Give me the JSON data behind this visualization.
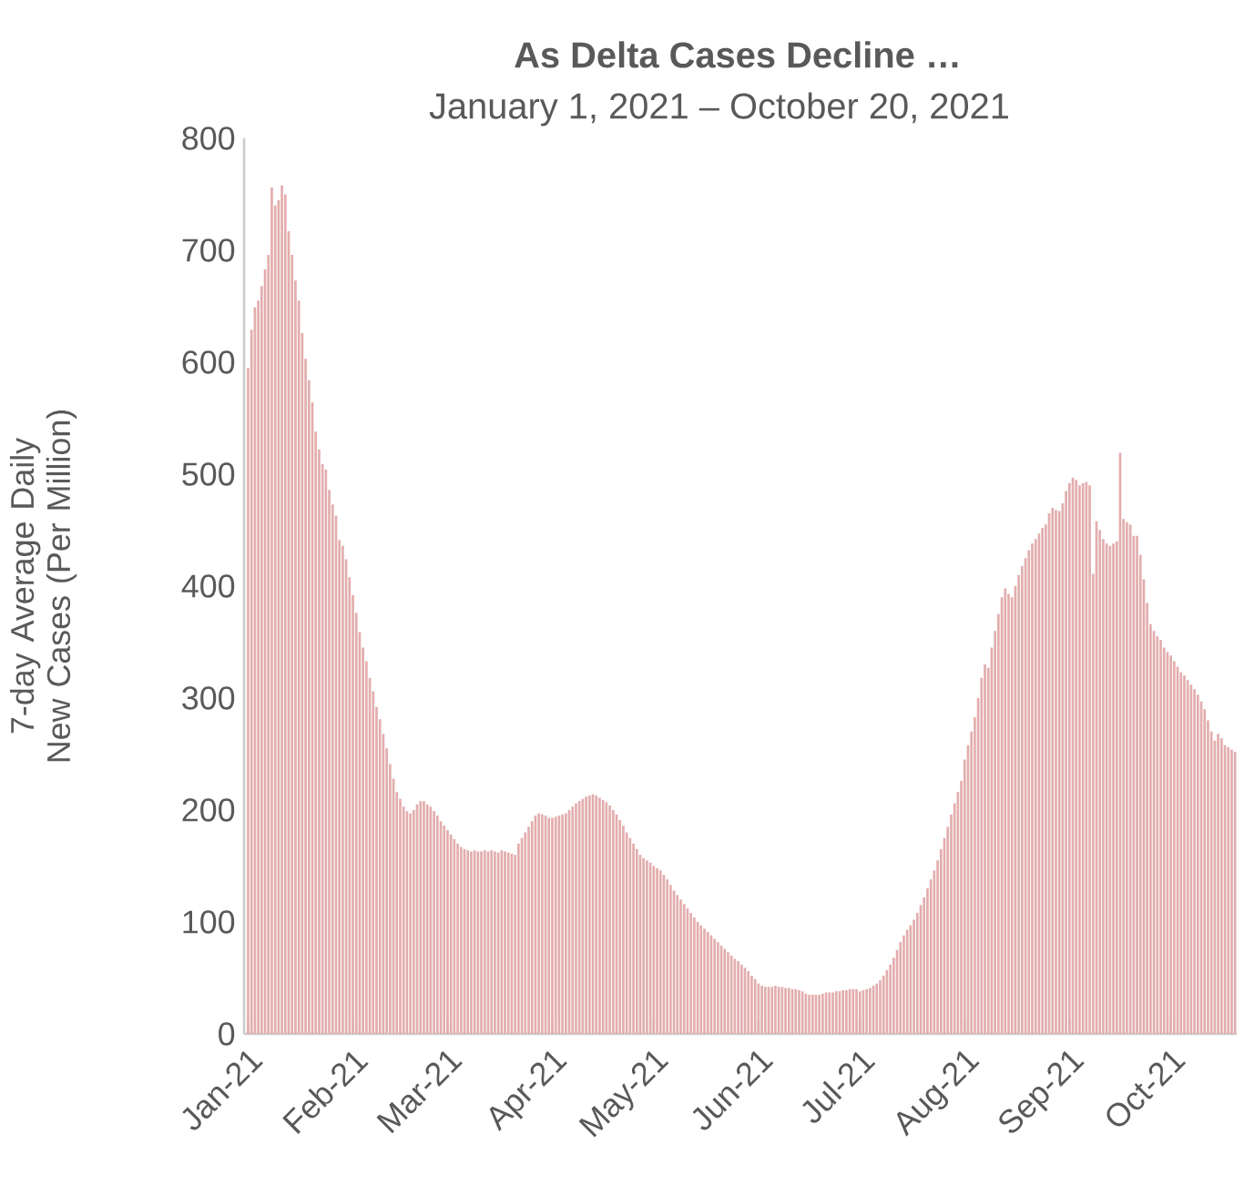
{
  "chart_data": {
    "type": "bar",
    "title": "As Delta Cases Decline …",
    "subtitle": "January 1, 2021 – October 20, 2021",
    "ylabel": "7-day Average Daily New Cases (Per Million)",
    "color": "#e3adad",
    "ylim": [
      0,
      800
    ],
    "yticks": [
      0,
      100,
      200,
      300,
      400,
      500,
      600,
      700,
      800
    ],
    "xlim": [
      "2021-01-01",
      "2021-10-20"
    ],
    "xticks": [
      {
        "value": "2021-01-01",
        "label": "Jan-21"
      },
      {
        "value": "2021-02-01",
        "label": "Feb-21"
      },
      {
        "value": "2021-03-01",
        "label": "Mar-21"
      },
      {
        "value": "2021-04-01",
        "label": "Apr-21"
      },
      {
        "value": "2021-05-01",
        "label": "May-21"
      },
      {
        "value": "2021-06-01",
        "label": "Jun-21"
      },
      {
        "value": "2021-07-01",
        "label": "Jul-21"
      },
      {
        "value": "2021-08-01",
        "label": "Aug-21"
      },
      {
        "value": "2021-09-01",
        "label": "Sep-21"
      },
      {
        "value": "2021-10-01",
        "label": "Oct-21"
      }
    ],
    "x": [
      "2021-01-01",
      "2021-01-02",
      "2021-01-03",
      "2021-01-04",
      "2021-01-05",
      "2021-01-06",
      "2021-01-07",
      "2021-01-08",
      "2021-01-09",
      "2021-01-10",
      "2021-01-11",
      "2021-01-12",
      "2021-01-13",
      "2021-01-14",
      "2021-01-15",
      "2021-01-16",
      "2021-01-17",
      "2021-01-18",
      "2021-01-19",
      "2021-01-20",
      "2021-01-21",
      "2021-01-22",
      "2021-01-23",
      "2021-01-24",
      "2021-01-25",
      "2021-01-26",
      "2021-01-27",
      "2021-01-28",
      "2021-01-29",
      "2021-01-30",
      "2021-01-31",
      "2021-02-01",
      "2021-02-02",
      "2021-02-03",
      "2021-02-04",
      "2021-02-05",
      "2021-02-06",
      "2021-02-07",
      "2021-02-08",
      "2021-02-09",
      "2021-02-10",
      "2021-02-11",
      "2021-02-12",
      "2021-02-13",
      "2021-02-14",
      "2021-02-15",
      "2021-02-16",
      "2021-02-17",
      "2021-02-18",
      "2021-02-19",
      "2021-02-20",
      "2021-02-21",
      "2021-02-22",
      "2021-02-23",
      "2021-02-24",
      "2021-02-25",
      "2021-02-26",
      "2021-02-27",
      "2021-02-28",
      "2021-03-01",
      "2021-03-02",
      "2021-03-03",
      "2021-03-04",
      "2021-03-05",
      "2021-03-06",
      "2021-03-07",
      "2021-03-08",
      "2021-03-09",
      "2021-03-10",
      "2021-03-11",
      "2021-03-12",
      "2021-03-13",
      "2021-03-14",
      "2021-03-15",
      "2021-03-16",
      "2021-03-17",
      "2021-03-18",
      "2021-03-19",
      "2021-03-20",
      "2021-03-21",
      "2021-03-22",
      "2021-03-23",
      "2021-03-24",
      "2021-03-25",
      "2021-03-26",
      "2021-03-27",
      "2021-03-28",
      "2021-03-29",
      "2021-03-30",
      "2021-03-31",
      "2021-04-01",
      "2021-04-02",
      "2021-04-03",
      "2021-04-04",
      "2021-04-05",
      "2021-04-06",
      "2021-04-07",
      "2021-04-08",
      "2021-04-09",
      "2021-04-10",
      "2021-04-11",
      "2021-04-12",
      "2021-04-13",
      "2021-04-14",
      "2021-04-15",
      "2021-04-16",
      "2021-04-17",
      "2021-04-18",
      "2021-04-19",
      "2021-04-20",
      "2021-04-21",
      "2021-04-22",
      "2021-04-23",
      "2021-04-24",
      "2021-04-25",
      "2021-04-26",
      "2021-04-27",
      "2021-04-28",
      "2021-04-29",
      "2021-04-30",
      "2021-05-01",
      "2021-05-02",
      "2021-05-03",
      "2021-05-04",
      "2021-05-05",
      "2021-05-06",
      "2021-05-07",
      "2021-05-08",
      "2021-05-09",
      "2021-05-10",
      "2021-05-11",
      "2021-05-12",
      "2021-05-13",
      "2021-05-14",
      "2021-05-15",
      "2021-05-16",
      "2021-05-17",
      "2021-05-18",
      "2021-05-19",
      "2021-05-20",
      "2021-05-21",
      "2021-05-22",
      "2021-05-23",
      "2021-05-24",
      "2021-05-25",
      "2021-05-26",
      "2021-05-27",
      "2021-05-28",
      "2021-05-29",
      "2021-05-30",
      "2021-05-31",
      "2021-06-01",
      "2021-06-02",
      "2021-06-03",
      "2021-06-04",
      "2021-06-05",
      "2021-06-06",
      "2021-06-07",
      "2021-06-08",
      "2021-06-09",
      "2021-06-10",
      "2021-06-11",
      "2021-06-12",
      "2021-06-13",
      "2021-06-14",
      "2021-06-15",
      "2021-06-16",
      "2021-06-17",
      "2021-06-18",
      "2021-06-19",
      "2021-06-20",
      "2021-06-21",
      "2021-06-22",
      "2021-06-23",
      "2021-06-24",
      "2021-06-25",
      "2021-06-26",
      "2021-06-27",
      "2021-06-28",
      "2021-06-29",
      "2021-06-30",
      "2021-07-01",
      "2021-07-02",
      "2021-07-03",
      "2021-07-04",
      "2021-07-05",
      "2021-07-06",
      "2021-07-07",
      "2021-07-08",
      "2021-07-09",
      "2021-07-10",
      "2021-07-11",
      "2021-07-12",
      "2021-07-13",
      "2021-07-14",
      "2021-07-15",
      "2021-07-16",
      "2021-07-17",
      "2021-07-18",
      "2021-07-19",
      "2021-07-20",
      "2021-07-21",
      "2021-07-22",
      "2021-07-23",
      "2021-07-24",
      "2021-07-25",
      "2021-07-26",
      "2021-07-27",
      "2021-07-28",
      "2021-07-29",
      "2021-07-30",
      "2021-07-31",
      "2021-08-01",
      "2021-08-02",
      "2021-08-03",
      "2021-08-04",
      "2021-08-05",
      "2021-08-06",
      "2021-08-07",
      "2021-08-08",
      "2021-08-09",
      "2021-08-10",
      "2021-08-11",
      "2021-08-12",
      "2021-08-13",
      "2021-08-14",
      "2021-08-15",
      "2021-08-16",
      "2021-08-17",
      "2021-08-18",
      "2021-08-19",
      "2021-08-20",
      "2021-08-21",
      "2021-08-22",
      "2021-08-23",
      "2021-08-24",
      "2021-08-25",
      "2021-08-26",
      "2021-08-27",
      "2021-08-28",
      "2021-08-29",
      "2021-08-30",
      "2021-08-31",
      "2021-09-01",
      "2021-09-02",
      "2021-09-03",
      "2021-09-04",
      "2021-09-05",
      "2021-09-06",
      "2021-09-07",
      "2021-09-08",
      "2021-09-09",
      "2021-09-10",
      "2021-09-11",
      "2021-09-12",
      "2021-09-13",
      "2021-09-14",
      "2021-09-15",
      "2021-09-16",
      "2021-09-17",
      "2021-09-18",
      "2021-09-19",
      "2021-09-20",
      "2021-09-21",
      "2021-09-22",
      "2021-09-23",
      "2021-09-24",
      "2021-09-25",
      "2021-09-26",
      "2021-09-27",
      "2021-09-28",
      "2021-09-29",
      "2021-09-30",
      "2021-10-01",
      "2021-10-02",
      "2021-10-03",
      "2021-10-04",
      "2021-10-05",
      "2021-10-06",
      "2021-10-07",
      "2021-10-08",
      "2021-10-09",
      "2021-10-10",
      "2021-10-11",
      "2021-10-12",
      "2021-10-13",
      "2021-10-14",
      "2021-10-15",
      "2021-10-16",
      "2021-10-17",
      "2021-10-18",
      "2021-10-19",
      "2021-10-20"
    ],
    "values": [
      595,
      629,
      649,
      655,
      668,
      683,
      696,
      756,
      740,
      745,
      758,
      750,
      717,
      696,
      673,
      655,
      626,
      603,
      584,
      564,
      538,
      522,
      509,
      504,
      486,
      473,
      463,
      441,
      436,
      424,
      408,
      392,
      376,
      359,
      345,
      333,
      318,
      306,
      292,
      281,
      268,
      255,
      241,
      228,
      216,
      210,
      203,
      199,
      197,
      200,
      205,
      208,
      208,
      205,
      203,
      199,
      195,
      190,
      186,
      182,
      178,
      174,
      170,
      167,
      165,
      164,
      163,
      164,
      163,
      163,
      164,
      163,
      164,
      163,
      162,
      164,
      163,
      162,
      161,
      160,
      170,
      175,
      180,
      185,
      190,
      195,
      197,
      196,
      195,
      193,
      193,
      194,
      195,
      196,
      197,
      200,
      203,
      206,
      208,
      210,
      212,
      213,
      214,
      213,
      211,
      209,
      207,
      204,
      200,
      196,
      191,
      186,
      180,
      175,
      170,
      165,
      160,
      157,
      155,
      153,
      150,
      148,
      146,
      142,
      138,
      133,
      128,
      124,
      120,
      116,
      112,
      108,
      104,
      100,
      97,
      94,
      91,
      88,
      85,
      82,
      79,
      76,
      73,
      70,
      67,
      65,
      62,
      59,
      56,
      52,
      49,
      45,
      43,
      42,
      42,
      42,
      43,
      42,
      42,
      41,
      41,
      40,
      40,
      39,
      38,
      36,
      35,
      35,
      35,
      35,
      36,
      37,
      37,
      37,
      38,
      38,
      39,
      39,
      40,
      40,
      40,
      38,
      39,
      40,
      41,
      43,
      45,
      48,
      52,
      57,
      62,
      68,
      75,
      82,
      88,
      93,
      97,
      102,
      108,
      115,
      122,
      130,
      138,
      146,
      155,
      165,
      175,
      185,
      196,
      206,
      216,
      226,
      245,
      258,
      270,
      283,
      300,
      318,
      330,
      327,
      345,
      360,
      375,
      390,
      398,
      393,
      390,
      400,
      410,
      418,
      425,
      432,
      438,
      442,
      447,
      452,
      455,
      465,
      470,
      468,
      467,
      474,
      485,
      492,
      497,
      495,
      490,
      492,
      493,
      490,
      411,
      458,
      450,
      442,
      438,
      436,
      438,
      440,
      519,
      460,
      457,
      455,
      445,
      445,
      428,
      406,
      385,
      366,
      360,
      355,
      352,
      345,
      341,
      338,
      333,
      328,
      323,
      320,
      316,
      312,
      308,
      303,
      297,
      290,
      280,
      270,
      262,
      268,
      264,
      258,
      256,
      254,
      252
    ]
  }
}
